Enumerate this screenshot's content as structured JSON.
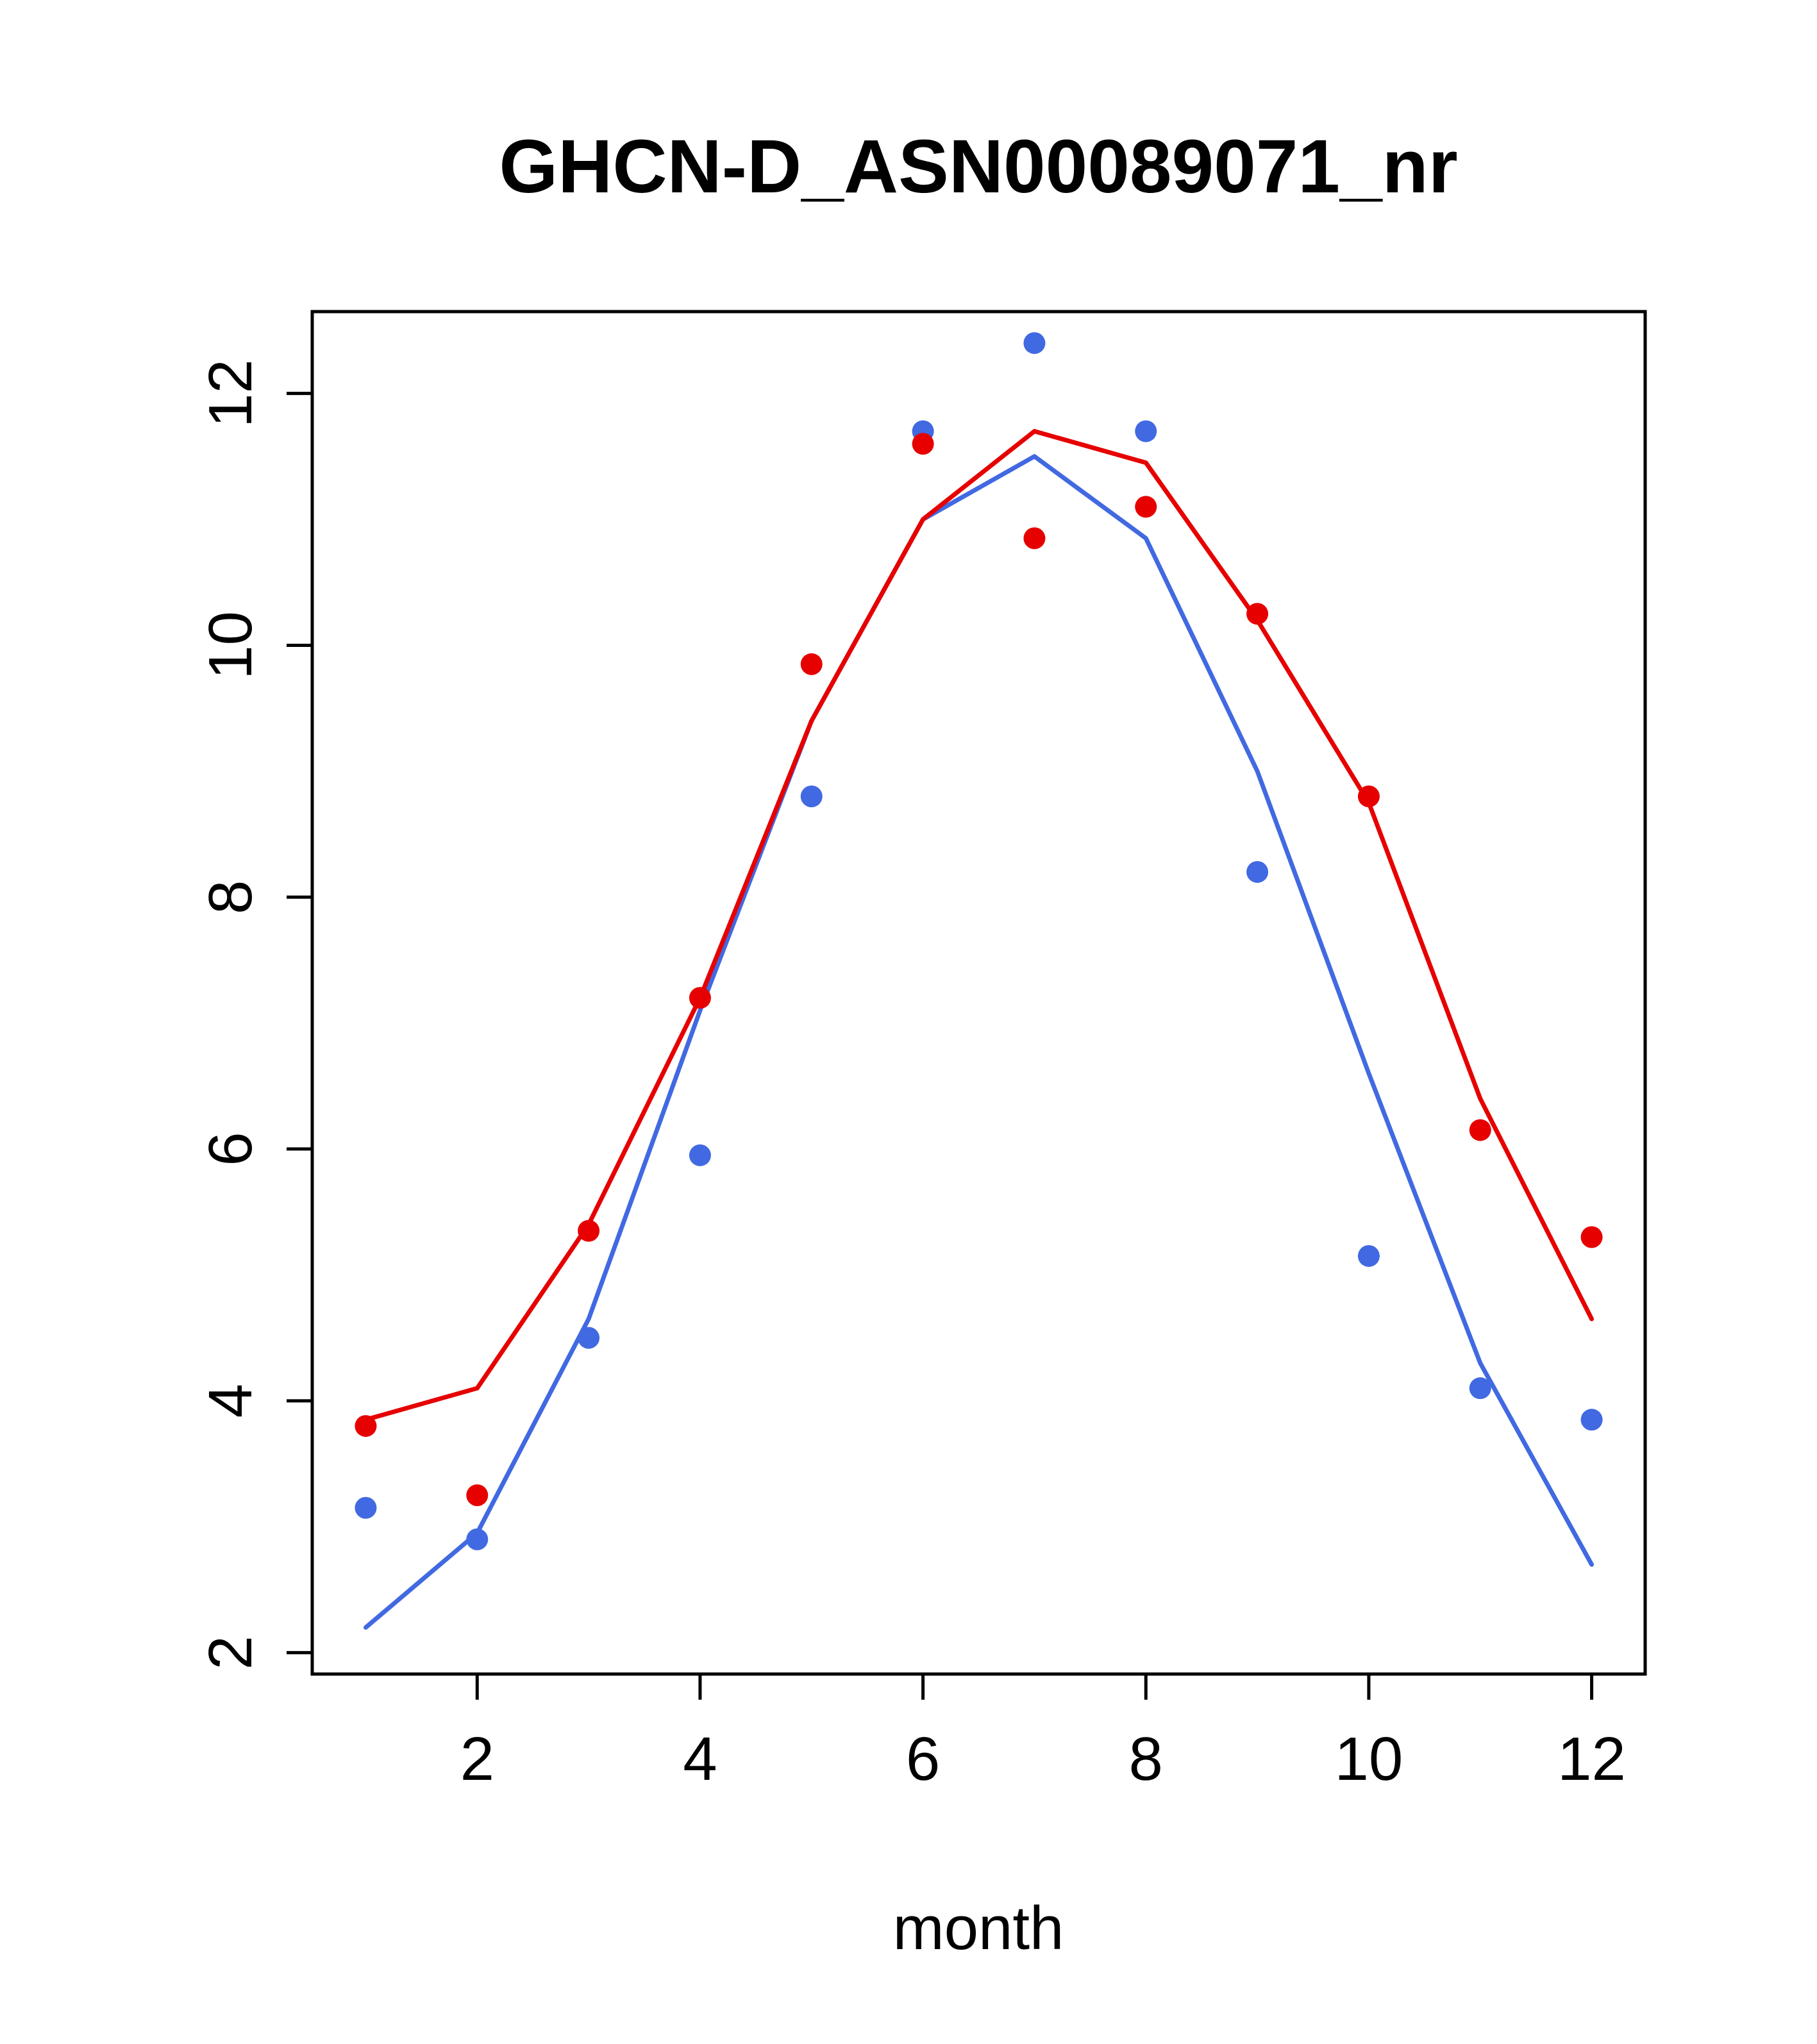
{
  "title": "GHCN-D_ASN00089071_nr",
  "chart_data": {
    "type": "line",
    "title": "GHCN-D_ASN00089071_nr",
    "xlabel": "month",
    "ylabel": "",
    "x": [
      1,
      2,
      3,
      4,
      5,
      6,
      7,
      8,
      9,
      10,
      11,
      12
    ],
    "xticks": [
      2,
      4,
      6,
      8,
      10,
      12
    ],
    "yticks": [
      2,
      4,
      6,
      8,
      10,
      12
    ],
    "xlim": [
      0.52,
      12.48
    ],
    "ylim": [
      1.83,
      12.65
    ],
    "grid": false,
    "legend": "none",
    "series": [
      {
        "name": "blue-fitted-line",
        "role": "line",
        "color": "#4169e1",
        "values": [
          2.2,
          2.95,
          4.65,
          7.1,
          9.4,
          11.0,
          11.5,
          10.85,
          9.0,
          6.6,
          4.3,
          2.7
        ]
      },
      {
        "name": "red-fitted-line",
        "role": "line",
        "color": "#e60000",
        "values": [
          3.85,
          4.1,
          5.4,
          7.2,
          9.4,
          11.0,
          11.7,
          11.45,
          10.2,
          8.75,
          6.4,
          4.65
        ]
      },
      {
        "name": "blue-monthly-points",
        "role": "points",
        "color": "#4169e1",
        "values": [
          3.15,
          2.9,
          4.5,
          5.95,
          8.8,
          11.7,
          12.4,
          11.7,
          8.2,
          5.15,
          4.1,
          3.85
        ]
      },
      {
        "name": "red-monthly-points",
        "role": "points",
        "color": "#e60000",
        "values": [
          3.8,
          3.25,
          5.35,
          7.2,
          9.85,
          11.6,
          10.85,
          11.1,
          10.25,
          8.8,
          6.15,
          5.3
        ]
      }
    ],
    "colors": {
      "red_series": "#e60000",
      "blue_series": "#4169e1",
      "axis": "#000000",
      "background": "#ffffff"
    }
  }
}
